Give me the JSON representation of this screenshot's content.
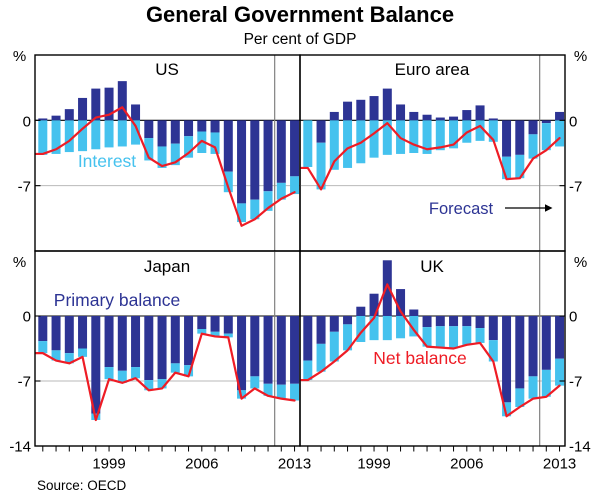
{
  "title": "General Government Balance",
  "subtitle": "Per cent of GDP",
  "source": "Source: OECD",
  "axis": {
    "percent": "%",
    "zero": "0",
    "minus_seven": "-7",
    "minus_fourteen": "-14",
    "years": [
      "1999",
      "2006",
      "2013"
    ]
  },
  "chart_data": {
    "type": "bar",
    "subtype": "stacked-bars-with-line",
    "unit": "per cent of GDP",
    "ylim": [
      -14,
      7
    ],
    "yticks": [
      0,
      -7,
      -14
    ],
    "grid_value": -7,
    "years": [
      1994,
      1995,
      1996,
      1997,
      1998,
      1999,
      2000,
      2001,
      2002,
      2003,
      2004,
      2005,
      2006,
      2007,
      2008,
      2009,
      2010,
      2011,
      2012,
      2013
    ],
    "xticklabels": [
      "1999",
      "2006",
      "2013"
    ],
    "forecast_start_year": 2012,
    "series_labels": {
      "interest": "Interest",
      "primary": "Primary balance",
      "net": "Net balance",
      "forecast": "Forecast"
    },
    "colors": {
      "primary": "#2d3494",
      "interest": "#45c2ee",
      "net": "#ee1c25",
      "grid": "#b9b9b9",
      "frame": "#000000",
      "forecast_divider": "#808080"
    },
    "panels": [
      {
        "name": "US",
        "position": "top-left",
        "primary": [
          0.2,
          0.5,
          1.2,
          2.4,
          3.4,
          3.5,
          4.2,
          1.7,
          -1.9,
          -2.8,
          -2.5,
          -1.7,
          -1.2,
          -1.3,
          -5.5,
          -8.9,
          -8.5,
          -7.6,
          -6.7,
          -6.0
        ],
        "interest": [
          -3.7,
          -3.6,
          -3.4,
          -3.3,
          -3.1,
          -2.9,
          -2.8,
          -2.6,
          -2.4,
          -2.3,
          -2.3,
          -2.3,
          -2.3,
          -2.3,
          -2.2,
          -2.0,
          -2.1,
          -2.1,
          -1.8,
          -1.9
        ],
        "net": [
          -3.6,
          -3.1,
          -2.2,
          -0.9,
          0.3,
          0.6,
          1.4,
          -0.6,
          -4.0,
          -4.9,
          -4.5,
          -3.5,
          -2.2,
          -2.9,
          -7.2,
          -11.3,
          -10.6,
          -9.4,
          -8.4,
          -7.7
        ]
      },
      {
        "name": "Euro area",
        "position": "top-right",
        "primary": [
          0.0,
          -2.4,
          0.9,
          2.0,
          2.2,
          2.6,
          3.4,
          1.7,
          0.9,
          0.6,
          0.3,
          0.4,
          1.1,
          1.6,
          0.2,
          -3.9,
          -3.7,
          -1.5,
          -0.3,
          0.9
        ],
        "interest": [
          -5.0,
          -5.0,
          -5.3,
          -5.1,
          -4.6,
          -4.0,
          -3.7,
          -3.6,
          -3.5,
          -3.6,
          -3.2,
          -3.0,
          -2.4,
          -2.2,
          -2.3,
          -2.4,
          -2.5,
          -2.6,
          -2.9,
          -2.8
        ],
        "net": [
          -5.1,
          -7.4,
          -4.4,
          -3.0,
          -2.4,
          -1.4,
          -0.3,
          -1.9,
          -2.6,
          -3.1,
          -2.9,
          -2.6,
          -1.3,
          -0.6,
          -2.1,
          -6.3,
          -6.2,
          -4.1,
          -3.2,
          -1.9
        ]
      },
      {
        "name": "Japan",
        "position": "bottom-left",
        "primary": [
          -2.7,
          -3.7,
          -4.0,
          -3.5,
          -10.5,
          -5.5,
          -5.9,
          -5.5,
          -6.9,
          -6.8,
          -5.1,
          -5.3,
          -1.4,
          -1.7,
          -1.9,
          -8.0,
          -6.5,
          -7.3,
          -7.4,
          -7.3
        ],
        "interest": [
          -1.3,
          -1.1,
          -1.1,
          -0.9,
          -0.7,
          -1.3,
          -1.3,
          -1.2,
          -1.1,
          -1.0,
          -1.0,
          -1.2,
          -0.5,
          -0.5,
          -0.4,
          -0.9,
          -1.3,
          -1.3,
          -1.5,
          -1.8
        ],
        "net": [
          -4.0,
          -4.8,
          -5.1,
          -4.4,
          -11.2,
          -6.8,
          -7.2,
          -6.7,
          -8.0,
          -7.8,
          -6.1,
          -6.5,
          -1.9,
          -2.2,
          -2.3,
          -8.9,
          -7.8,
          -8.6,
          -8.9,
          -9.1
        ]
      },
      {
        "name": "UK",
        "position": "bottom-right",
        "primary": [
          -4.8,
          -3.0,
          -1.7,
          -0.9,
          1.0,
          2.4,
          6.0,
          2.9,
          0.7,
          -1.2,
          -1.1,
          -1.1,
          -1.1,
          -1.3,
          -2.6,
          -9.3,
          -7.8,
          -6.5,
          -5.8,
          -4.6
        ],
        "interest": [
          -2.1,
          -3.0,
          -3.2,
          -2.8,
          -2.8,
          -2.6,
          -2.6,
          -2.4,
          -2.2,
          -2.1,
          -2.3,
          -2.4,
          -2.0,
          -1.6,
          -2.3,
          -1.5,
          -2.0,
          -2.4,
          -2.9,
          -2.9
        ],
        "net": [
          -6.9,
          -6.0,
          -4.9,
          -3.7,
          -1.8,
          -0.2,
          3.4,
          0.5,
          -1.5,
          -3.3,
          -3.4,
          -3.5,
          -3.1,
          -2.9,
          -4.9,
          -10.8,
          -9.8,
          -8.9,
          -8.7,
          -7.5
        ]
      }
    ]
  }
}
